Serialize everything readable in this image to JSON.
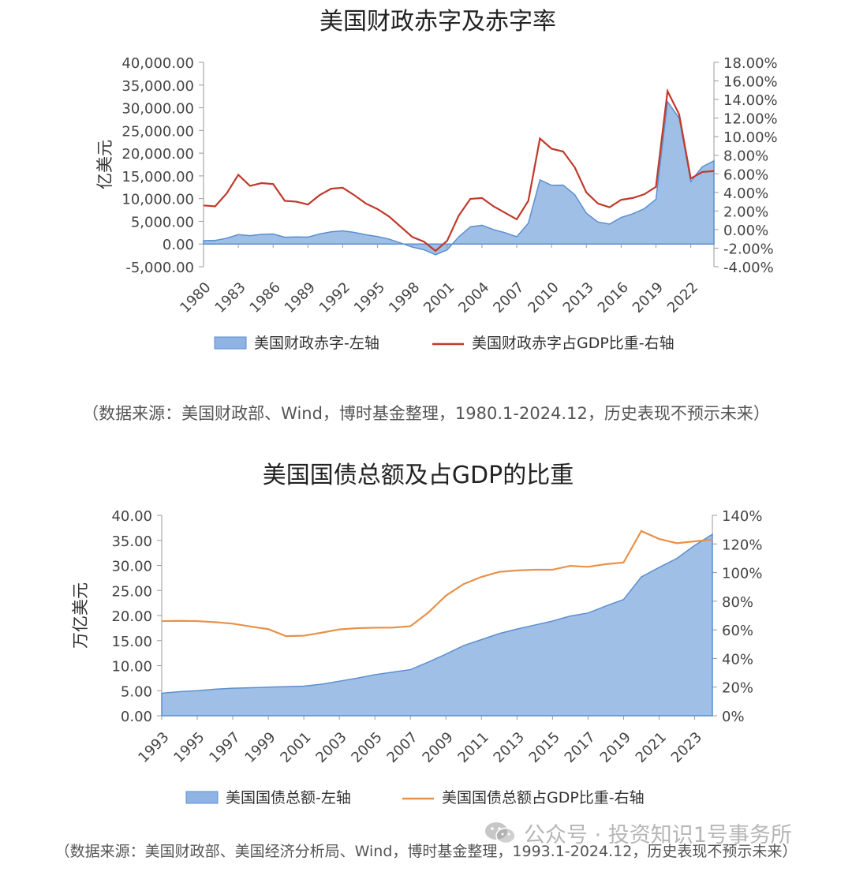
{
  "chart_data": [
    {
      "type": "area+line",
      "title": "美国财政赤字及赤字率",
      "ylabel": "亿美元",
      "ylim": [
        -5000,
        40000
      ],
      "yticks": [
        "-5,000.00",
        "0.00",
        "5,000.00",
        "10,000.00",
        "15,000.00",
        "20,000.00",
        "25,000.00",
        "30,000.00",
        "35,000.00",
        "40,000.00"
      ],
      "y2lim": [
        -4,
        18
      ],
      "y2ticks": [
        "-4.00%",
        "-2.00%",
        "0.00%",
        "2.00%",
        "4.00%",
        "6.00%",
        "8.00%",
        "10.00%",
        "12.00%",
        "14.00%",
        "16.00%",
        "18.00%"
      ],
      "x": [
        1980,
        1981,
        1982,
        1983,
        1984,
        1985,
        1986,
        1987,
        1988,
        1989,
        1990,
        1991,
        1992,
        1993,
        1994,
        1995,
        1996,
        1997,
        1998,
        1999,
        2000,
        2001,
        2002,
        2003,
        2004,
        2005,
        2006,
        2007,
        2008,
        2009,
        2010,
        2011,
        2012,
        2013,
        2014,
        2015,
        2016,
        2017,
        2018,
        2019,
        2020,
        2021,
        2022,
        2023,
        2024
      ],
      "xticks": [
        "1980",
        "1983",
        "1986",
        "1989",
        "1992",
        "1995",
        "1998",
        "2001",
        "2004",
        "2007",
        "2010",
        "2013",
        "2016",
        "2019",
        "2022"
      ],
      "legend_position": "bottom",
      "series": [
        {
          "name": "美国财政赤字-左轴",
          "type": "area",
          "axis": "left",
          "color": "#8fb4e3",
          "values": [
            740,
            790,
            1280,
            2080,
            1850,
            2120,
            2210,
            1500,
            1550,
            1530,
            2210,
            2690,
            2900,
            2550,
            2030,
            1640,
            1070,
            220,
            -690,
            -1260,
            -2360,
            -1280,
            1580,
            3780,
            4130,
            3180,
            2480,
            1610,
            4590,
            14130,
            12940,
            12970,
            10870,
            6800,
            4850,
            4390,
            5850,
            6650,
            7790,
            9840,
            31320,
            27750,
            13760,
            17000,
            18330
          ]
        },
        {
          "name": "美国财政赤字占GDP比重-右轴",
          "type": "line",
          "axis": "right",
          "color": "#c0392b",
          "values": [
            2.6,
            2.5,
            3.9,
            5.9,
            4.7,
            5.0,
            4.9,
            3.1,
            3.0,
            2.7,
            3.7,
            4.4,
            4.5,
            3.7,
            2.8,
            2.2,
            1.4,
            0.3,
            -0.8,
            -1.3,
            -2.3,
            -1.2,
            1.5,
            3.3,
            3.4,
            2.5,
            1.8,
            1.1,
            3.1,
            9.8,
            8.7,
            8.4,
            6.7,
            4.0,
            2.8,
            2.4,
            3.2,
            3.4,
            3.8,
            4.6,
            14.9,
            12.4,
            5.5,
            6.2,
            6.3
          ]
        }
      ]
    },
    {
      "type": "area+line",
      "title": "美国国债总额及占GDP的比重",
      "ylabel": "万亿美元",
      "ylim": [
        0,
        40
      ],
      "yticks": [
        "0.00",
        "5.00",
        "10.00",
        "15.00",
        "20.00",
        "25.00",
        "30.00",
        "35.00",
        "40.00"
      ],
      "y2lim": [
        0,
        140
      ],
      "y2ticks": [
        "0%",
        "20%",
        "40%",
        "60%",
        "80%",
        "100%",
        "120%",
        "140%"
      ],
      "x": [
        1993,
        1994,
        1995,
        1996,
        1997,
        1998,
        1999,
        2000,
        2001,
        2002,
        2003,
        2004,
        2005,
        2006,
        2007,
        2008,
        2009,
        2010,
        2011,
        2012,
        2013,
        2014,
        2015,
        2016,
        2017,
        2018,
        2019,
        2020,
        2021,
        2022,
        2023,
        2024
      ],
      "xticks": [
        "1993",
        "1995",
        "1997",
        "1999",
        "2001",
        "2003",
        "2005",
        "2007",
        "2009",
        "2011",
        "2013",
        "2015",
        "2017",
        "2019",
        "2021",
        "2023"
      ],
      "legend_position": "bottom",
      "series": [
        {
          "name": "美国国债总额-左轴",
          "type": "area",
          "axis": "left",
          "color": "#8fb4e3",
          "values": [
            4.5,
            4.8,
            5.0,
            5.3,
            5.5,
            5.6,
            5.7,
            5.8,
            5.9,
            6.3,
            6.9,
            7.5,
            8.2,
            8.7,
            9.2,
            10.7,
            12.3,
            14.0,
            15.2,
            16.4,
            17.3,
            18.1,
            18.9,
            19.9,
            20.5,
            21.9,
            23.2,
            27.7,
            29.6,
            31.4,
            34.0,
            36.2
          ]
        },
        {
          "name": "美国国债总额占GDP比重-右轴",
          "type": "line",
          "axis": "right",
          "color": "#e8914a",
          "values": [
            66.1,
            66.3,
            66.1,
            65.4,
            64.3,
            62.3,
            60.5,
            55.6,
            55.9,
            58.0,
            60.3,
            61.2,
            61.5,
            61.6,
            62.5,
            72.0,
            83.9,
            92.0,
            97.0,
            100.5,
            101.5,
            102.0,
            102.0,
            104.7,
            104.0,
            105.9,
            107.0,
            129.0,
            123.5,
            120.5,
            121.8,
            123.1
          ]
        }
      ]
    }
  ],
  "sources": [
    "（数据来源：美国财政部、Wind，博时基金整理，1980.1-2024.12，历史表现不预示未来）",
    "（数据来源：美国财政部、美国经济分析局、Wind，博时基金整理，1993.1-2024.12，历史表现不预示未来）"
  ],
  "watermark": "公众号 · 投资知识1号事务所"
}
